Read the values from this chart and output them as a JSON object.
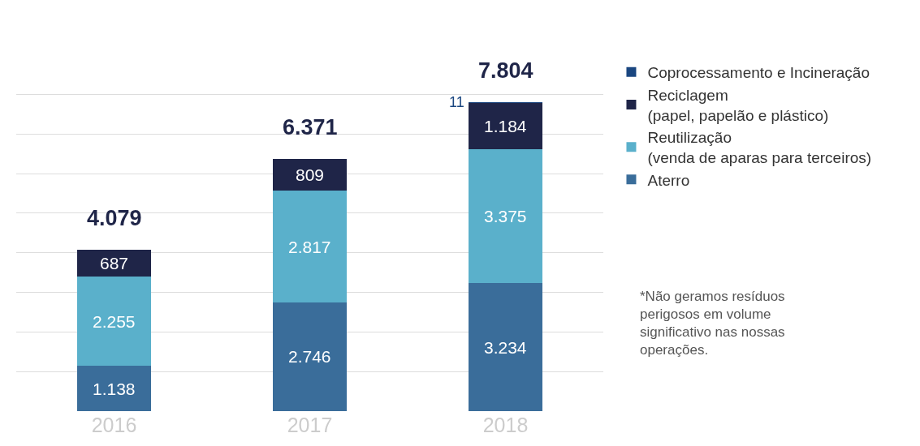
{
  "chart_data": {
    "type": "bar",
    "stacked": true,
    "categories": [
      "2016",
      "2017",
      "2018"
    ],
    "series": [
      {
        "name": "Aterro",
        "color": "#3a6d9a",
        "values": [
          1138,
          2746,
          3234
        ],
        "value_labels": [
          "1.138",
          "2.746",
          "3.234"
        ]
      },
      {
        "name": "Reutilização\n(venda de aparas para terceiros)",
        "color": "#5ab0cb",
        "values": [
          2255,
          2817,
          3375
        ],
        "value_labels": [
          "2.255",
          "2.817",
          "3.375"
        ]
      },
      {
        "name": "Reciclagem\n(papel, papelão e plástico)",
        "color": "#1f2548",
        "values": [
          687,
          809,
          1184
        ],
        "value_labels": [
          "687",
          "809",
          "1.184"
        ]
      },
      {
        "name": "Coprocessamento e Incineração",
        "color": "#1a4680",
        "values": [
          null,
          null,
          11
        ],
        "value_labels": [
          null,
          null,
          "11"
        ]
      }
    ],
    "totals": [
      "4.079",
      "6.371",
      "7.804"
    ],
    "grid": "y",
    "legend": "right",
    "tick_labels": "x",
    "annotations": [
      "*Não geramos resíduos\nperigosos em volume\nsignificativo nas nossas\noperações."
    ]
  }
}
